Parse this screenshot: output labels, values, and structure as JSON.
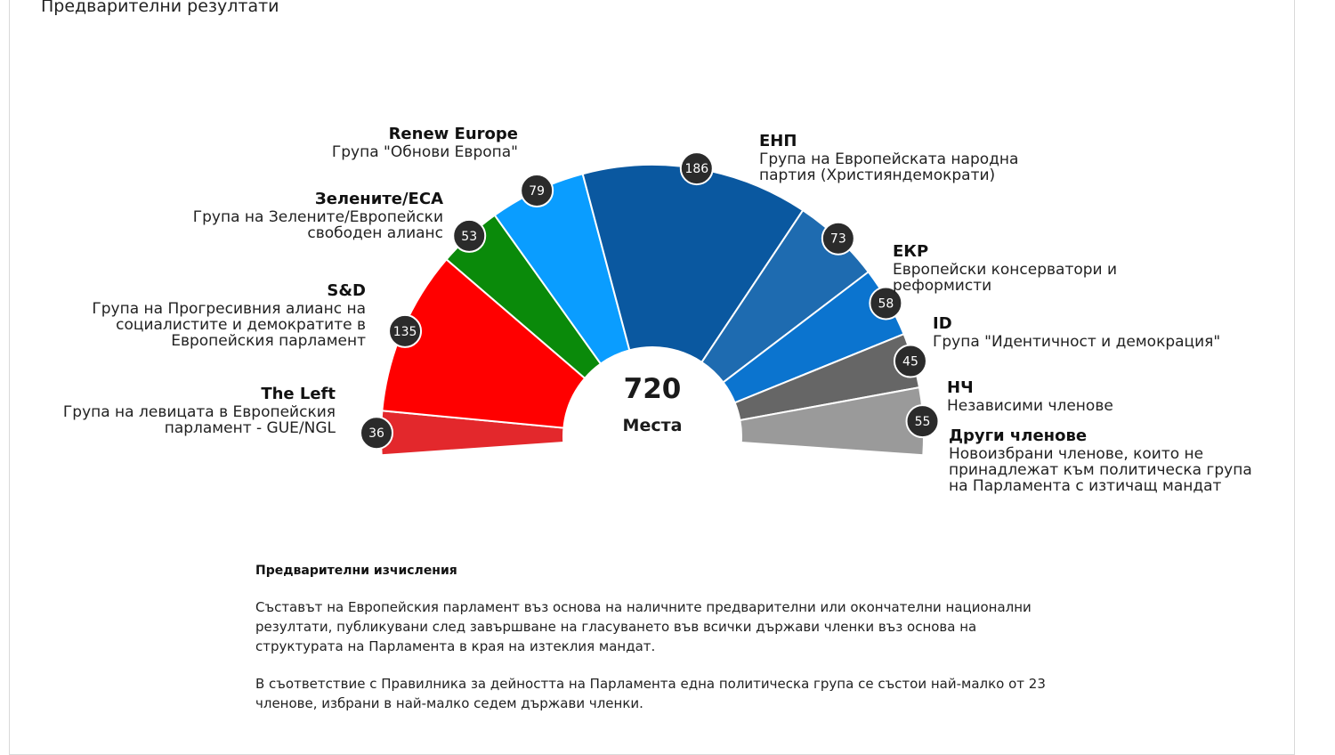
{
  "page_heading": "Предварителни резултати",
  "chart_data": {
    "type": "pie",
    "total": "720",
    "total_label": "Места",
    "groups": [
      {
        "id": "left",
        "name": "The Left",
        "full": "Група на левицата в Европейския\nпарламент - GUE/NGL",
        "seats": 36,
        "color": "#e3282c"
      },
      {
        "id": "sd",
        "name": "S&D",
        "full": "Група на Прогресивния алианс на\nсоциалистите и демократите в\nЕвропейския парламент",
        "seats": 135,
        "color": "#ff0000"
      },
      {
        "id": "greens",
        "name": "Зелените/ЕСА",
        "full": "Група на Зелените/Европейски\nсвободен алианс",
        "seats": 53,
        "color": "#0a8a0a"
      },
      {
        "id": "renew",
        "name": "Renew Europe",
        "full": "Група \"Обнови Европа\"",
        "seats": 79,
        "color": "#0a9dff"
      },
      {
        "id": "epp",
        "name": "ЕНП",
        "full": "Група на Европейската народна\nпартия (Християндемократи)",
        "seats": 186,
        "color": "#0a58a0"
      },
      {
        "id": "ecr",
        "name": "ЕКР",
        "full": "Европейски консерватори и\nреформисти",
        "seats": 73,
        "color": "#1e6bb0"
      },
      {
        "id": "id",
        "name": "ID",
        "full": "Група \"Идентичност и демокрация\"",
        "seats": 58,
        "color": "#0b74cf"
      },
      {
        "id": "ni",
        "name": "НЧ",
        "full": "Независими членове",
        "seats": 45,
        "color": "#666666"
      },
      {
        "id": "others",
        "name": "Други членове",
        "full": "Новоизбрани членове, които не\nпринадлежат към политическа група\nна Парламента с изтичащ мандат",
        "seats": 55,
        "color": "#9a9a9a"
      }
    ]
  },
  "notes": {
    "title": "Предварителни изчисления",
    "paragraphs": [
      "Съставът на Европейския парламент въз основа на наличните предварителни или окончателни национални резултати, публикувани след завършване на гласуването във всички държави членки въз основа на структурата на Парламента в края на изтеклия мандат.",
      "В съответствие с Правилника за дейността на Парламента една политическа група се състои най-малко от 23 членове, избрани в най-малко седем държави членки."
    ]
  }
}
